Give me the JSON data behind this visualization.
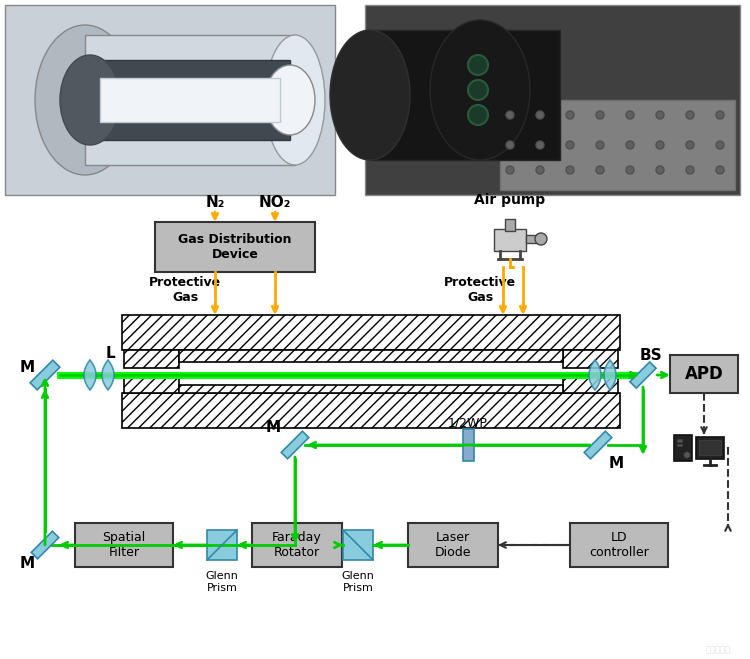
{
  "bg_color": "#ffffff",
  "green": "#00cc00",
  "yellow": "#ffaa00",
  "dashed_color": "#333333",
  "mirror_color": "#88ccdd",
  "box_color": "#bbbbbb",
  "box_edge": "#333333",
  "halfwp_color": "#88aacc",
  "labels": {
    "N2": "N₂",
    "NO2": "NO₂",
    "air_pump": "Air pump",
    "gas_dist": "Gas Distribution\nDevice",
    "prot_gas_left": "Protective\nGas",
    "prot_gas_right": "Protective\nGas",
    "L": "L",
    "M_left": "M",
    "BS": "BS",
    "APD": "APD",
    "half_wp": "1/2WP",
    "M_mid_left": "M",
    "M_mid_right": "M",
    "spatial_filter": "Spatial\nFilter",
    "faraday": "Faraday\nRotator",
    "glenn_left": "Glenn\nPrism",
    "glenn_right": "Glenn\nPrism",
    "laser_diode": "Laser\nDiode",
    "LD_controller": "LD\ncontroller",
    "M_bottom": "M"
  }
}
